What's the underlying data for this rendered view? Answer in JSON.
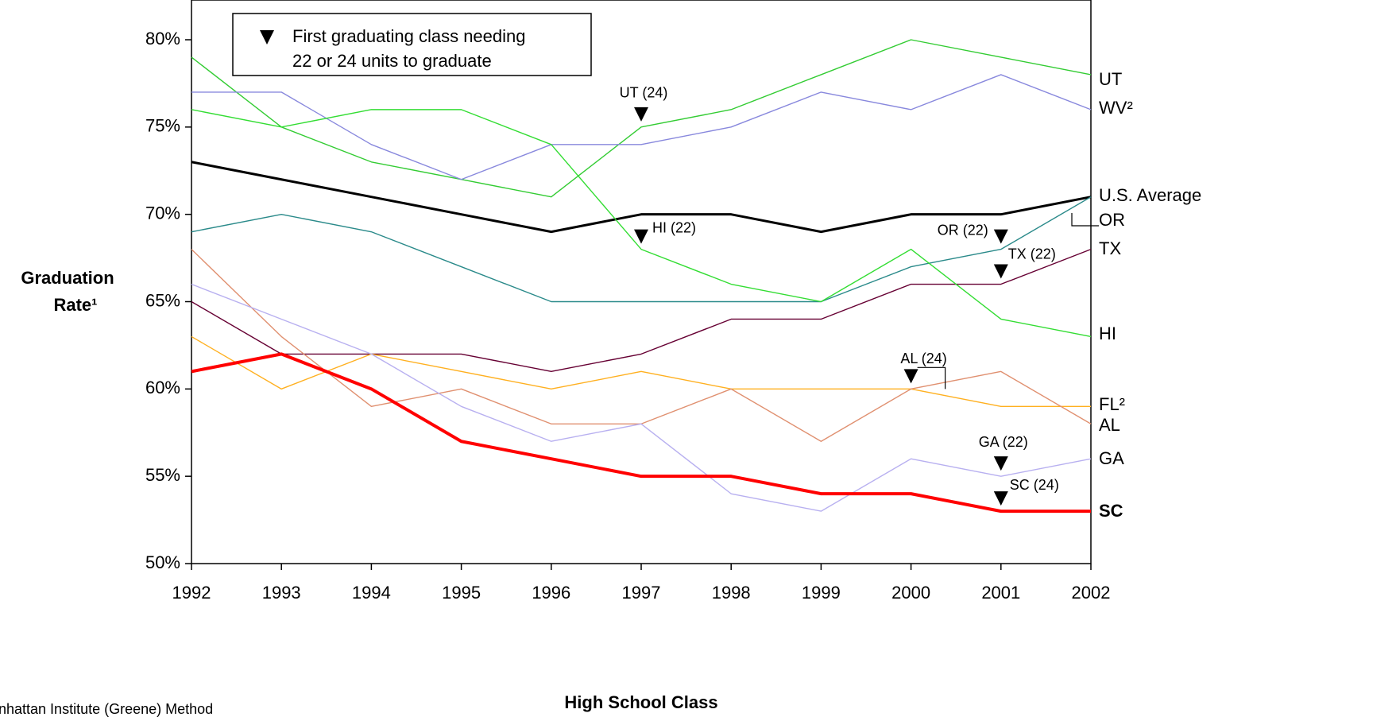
{
  "chart_data": {
    "type": "line",
    "y_label_lines": [
      "Graduation",
      "Rate¹"
    ],
    "x_label": "High School Class",
    "footnote": "nhattan Institute (Greene) Method",
    "legend_lines": [
      "First graduating class needing",
      "22 or 24 units to graduate"
    ],
    "x": [
      1992,
      1993,
      1994,
      1995,
      1996,
      1997,
      1998,
      1999,
      2000,
      2001,
      2002
    ],
    "xlim": [
      1992,
      2002
    ],
    "xticks": [
      1992,
      1993,
      1994,
      1995,
      1996,
      1997,
      1998,
      1999,
      2000,
      2001,
      2002
    ],
    "ylim": [
      50,
      80
    ],
    "yticks": [
      {
        "value": 50,
        "label": "50%"
      },
      {
        "value": 55,
        "label": "55%"
      },
      {
        "value": 60,
        "label": "60%"
      },
      {
        "value": 65,
        "label": "65%"
      },
      {
        "value": 70,
        "label": "70%"
      },
      {
        "value": 75,
        "label": "75%"
      },
      {
        "value": 80,
        "label": "80%"
      }
    ],
    "series": [
      {
        "name": "UT",
        "color": "#33cc33",
        "values": [
          79,
          75,
          73,
          72,
          71,
          75,
          76,
          78,
          80,
          79,
          78
        ]
      },
      {
        "name": "WV²",
        "color": "#8888dd",
        "values": [
          77,
          77,
          74,
          72,
          74,
          74,
          75,
          77,
          76,
          78,
          76
        ]
      },
      {
        "name": "U.S. Average",
        "color": "#000000",
        "values": [
          73,
          72,
          71,
          70,
          69,
          70,
          70,
          69,
          70,
          70,
          71
        ]
      },
      {
        "name": "OR",
        "color": "#2a8a8a",
        "values": [
          69,
          70,
          69,
          67,
          65,
          65,
          65,
          65,
          67,
          68,
          71
        ]
      },
      {
        "name": "TX",
        "color": "#660033",
        "values": [
          65,
          62,
          62,
          62,
          61,
          62,
          64,
          64,
          66,
          66,
          68
        ]
      },
      {
        "name": "HI",
        "color": "#33dd33",
        "values": [
          76,
          75,
          76,
          76,
          74,
          68,
          66,
          65,
          68,
          64,
          63
        ]
      },
      {
        "name": "FL²",
        "color": "#ffb020",
        "values": [
          63,
          60,
          62,
          61,
          60,
          61,
          60,
          60,
          60,
          59,
          59
        ]
      },
      {
        "name": "AL",
        "color": "#e09070",
        "values": [
          68,
          63,
          59,
          60,
          58,
          58,
          60,
          57,
          60,
          61,
          58
        ]
      },
      {
        "name": "GA",
        "color": "#b8b0f0",
        "values": [
          66,
          64,
          62,
          59,
          57,
          58,
          54,
          53,
          56,
          55,
          56
        ]
      },
      {
        "name": "SC",
        "color": "#ff0000",
        "values": [
          61,
          62,
          60,
          57,
          56,
          55,
          55,
          54,
          54,
          53,
          53
        ]
      }
    ],
    "annotations": [
      {
        "text": "UT (24)",
        "series": 0,
        "x": 1997
      },
      {
        "text": "HI (22)",
        "series": 5,
        "x": 1997
      },
      {
        "text": "OR (22)",
        "series": 3,
        "x": 2001
      },
      {
        "text": "TX (22)",
        "series": 4,
        "x": 2001
      },
      {
        "text": "AL (24)",
        "series": 7,
        "x": 2000
      },
      {
        "text": "GA (22)",
        "series": 8,
        "x": 2001
      },
      {
        "text": "SC (24)",
        "series": 9,
        "x": 2001
      }
    ]
  }
}
